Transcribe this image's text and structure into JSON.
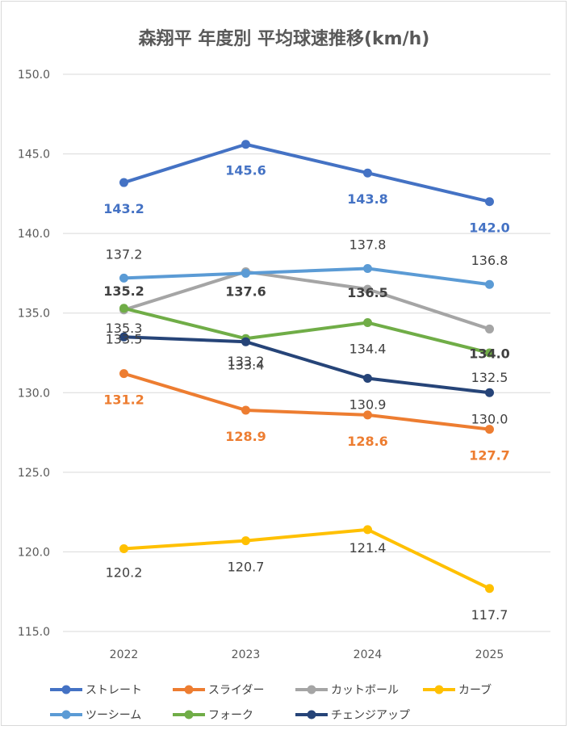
{
  "chart_data": {
    "type": "line",
    "title": "森翔平 年度別 平均球速推移(km/h)",
    "xlabel": "",
    "ylabel": "",
    "categories": [
      "2022",
      "2023",
      "2024",
      "2025"
    ],
    "ylim": [
      115,
      150
    ],
    "yticks": [
      "115.0",
      "120.0",
      "125.0",
      "130.0",
      "135.0",
      "140.0",
      "145.0",
      "150.0"
    ],
    "grid": true,
    "legend_position": "bottom",
    "series": [
      {
        "name": "ストレート",
        "color": "#4472C4",
        "values": [
          143.2,
          145.6,
          143.8,
          142.0
        ],
        "labels": [
          "143.2",
          "145.6",
          "143.8",
          "142.0"
        ]
      },
      {
        "name": "スライダー",
        "color": "#ED7D31",
        "values": [
          131.2,
          128.9,
          128.6,
          127.7
        ],
        "labels": [
          "131.2",
          "128.9",
          "128.6",
          "127.7"
        ]
      },
      {
        "name": "カットボール",
        "color": "#A5A5A5",
        "values": [
          135.2,
          137.6,
          136.5,
          134.0
        ],
        "labels": [
          "135.2",
          "137.6",
          "136.5",
          "134.0"
        ]
      },
      {
        "name": "カーブ",
        "color": "#FFC000",
        "values": [
          120.2,
          120.7,
          121.4,
          117.7
        ],
        "labels": [
          "120.2",
          "120.7",
          "121.4",
          "117.7"
        ]
      },
      {
        "name": "ツーシーム",
        "color": "#5B9BD5",
        "values": [
          137.2,
          137.5,
          137.8,
          136.8
        ],
        "labels": [
          "137.2",
          "",
          "137.8",
          "136.8"
        ]
      },
      {
        "name": "フォーク",
        "color": "#70AD47",
        "values": [
          135.3,
          133.4,
          134.4,
          132.5
        ],
        "labels": [
          "135.3",
          "133.4",
          "134.4",
          "132.5"
        ]
      },
      {
        "name": "チェンジアップ",
        "color": "#264478",
        "values": [
          133.5,
          133.2,
          130.9,
          130.0
        ],
        "labels": [
          "133.5",
          "133.2",
          "130.9",
          "130.0"
        ]
      }
    ]
  }
}
